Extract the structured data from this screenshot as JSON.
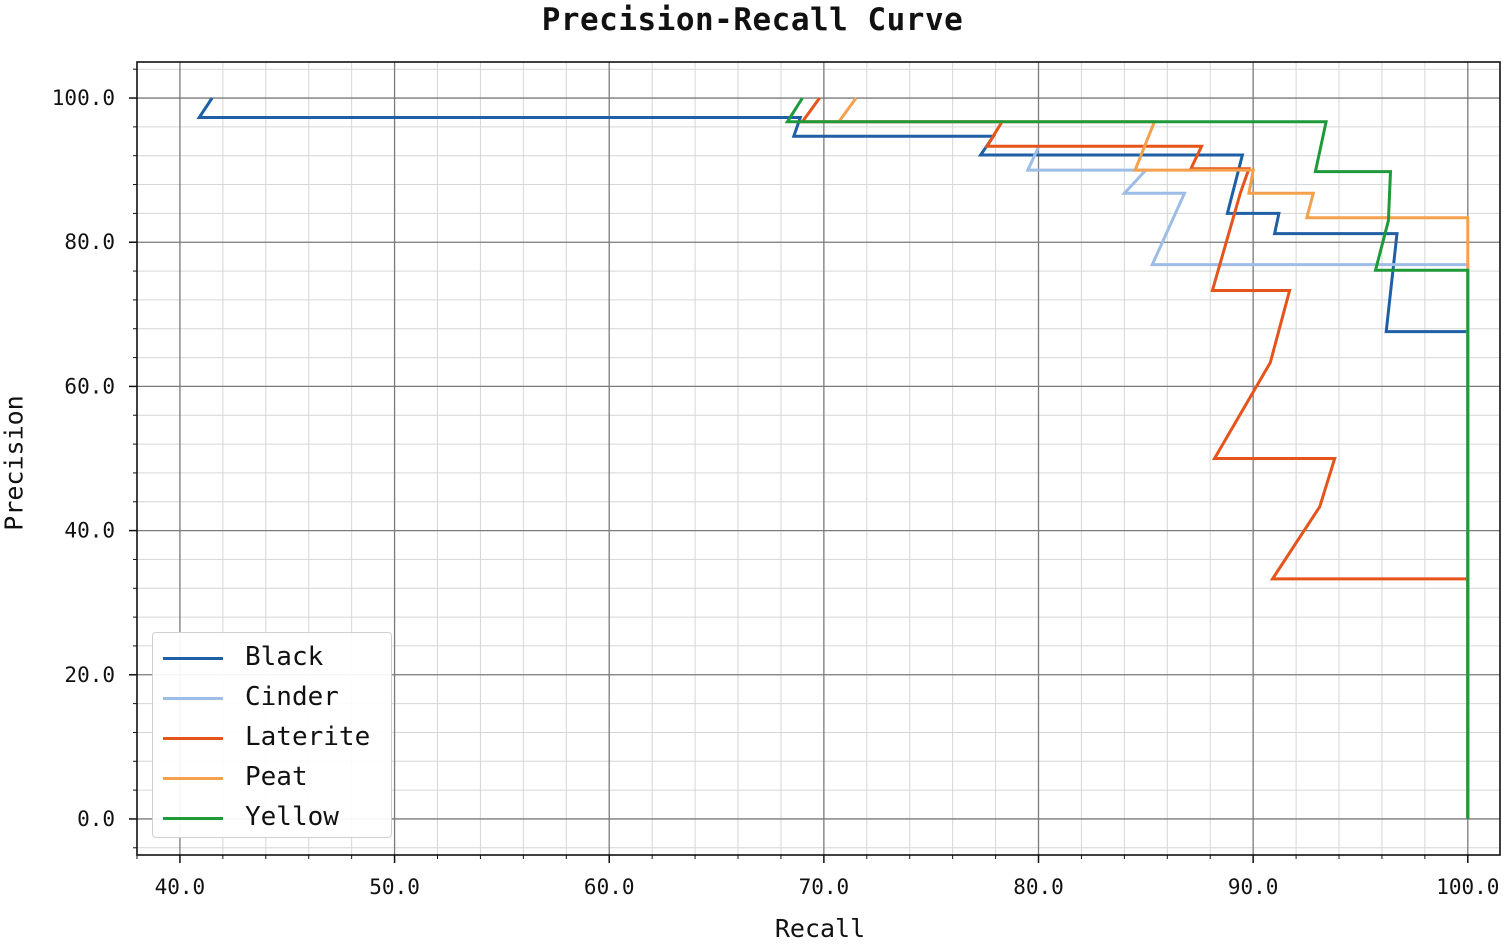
{
  "chart_data": {
    "type": "line",
    "title": "Precision-Recall Curve",
    "xlabel": "Recall",
    "ylabel": "Precision",
    "xlim": [
      38,
      101.5
    ],
    "ylim": [
      -5,
      105
    ],
    "xticks": [
      "40.0",
      "50.0",
      "60.0",
      "70.0",
      "80.0",
      "90.0",
      "100.0"
    ],
    "yticks": [
      "0.0",
      "20.0",
      "40.0",
      "60.0",
      "80.0",
      "100.0"
    ],
    "grid": true,
    "legend_position": "lower-left",
    "series": [
      {
        "name": "Black",
        "color": "#1f5fa6",
        "points": [
          [
            41.5,
            100
          ],
          [
            40.9,
            97.3
          ],
          [
            68.9,
            97.3
          ],
          [
            68.6,
            94.7
          ],
          [
            77.9,
            94.7
          ],
          [
            77.3,
            92.1
          ],
          [
            89.5,
            92.1
          ],
          [
            88.8,
            84.0
          ],
          [
            91.2,
            84.0
          ],
          [
            91.0,
            81.2
          ],
          [
            96.7,
            81.2
          ],
          [
            96.2,
            67.6
          ],
          [
            100,
            67.6
          ],
          [
            100,
            0
          ]
        ]
      },
      {
        "name": "Cinder",
        "color": "#9dbde6",
        "points": [
          [
            80.0,
            93.2
          ],
          [
            79.5,
            90.0
          ],
          [
            85.0,
            90.0
          ],
          [
            84.0,
            86.8
          ],
          [
            86.8,
            86.8
          ],
          [
            85.3,
            76.9
          ],
          [
            100,
            76.9
          ],
          [
            100,
            0
          ]
        ]
      },
      {
        "name": "Laterite",
        "color": "#e5541b",
        "points": [
          [
            69.8,
            100
          ],
          [
            69.0,
            96.7
          ],
          [
            78.3,
            96.7
          ],
          [
            77.6,
            93.3
          ],
          [
            87.6,
            93.3
          ],
          [
            87.1,
            90.2
          ],
          [
            89.8,
            90.2
          ],
          [
            89.4,
            86.8
          ],
          [
            88.1,
            73.3
          ],
          [
            91.7,
            73.3
          ],
          [
            90.8,
            63.3
          ],
          [
            88.2,
            50.0
          ],
          [
            93.8,
            50.0
          ],
          [
            93.1,
            43.3
          ],
          [
            90.9,
            33.3
          ],
          [
            100,
            33.3
          ],
          [
            100,
            0
          ]
        ]
      },
      {
        "name": "Peat",
        "color": "#f5a04c",
        "points": [
          [
            71.5,
            100
          ],
          [
            70.7,
            96.7
          ],
          [
            85.4,
            96.7
          ],
          [
            84.5,
            90.0
          ],
          [
            90.0,
            90.0
          ],
          [
            89.8,
            86.8
          ],
          [
            92.8,
            86.8
          ],
          [
            92.5,
            83.4
          ],
          [
            100,
            83.4
          ],
          [
            100,
            76.9
          ],
          [
            100,
            0
          ]
        ]
      },
      {
        "name": "Yellow",
        "color": "#1f9a3a",
        "points": [
          [
            69.0,
            100
          ],
          [
            68.3,
            96.7
          ],
          [
            93.4,
            96.7
          ],
          [
            92.9,
            89.8
          ],
          [
            96.4,
            89.8
          ],
          [
            96.3,
            83.0
          ],
          [
            95.7,
            76.1
          ],
          [
            100,
            76.1
          ],
          [
            100,
            0
          ]
        ]
      }
    ]
  }
}
